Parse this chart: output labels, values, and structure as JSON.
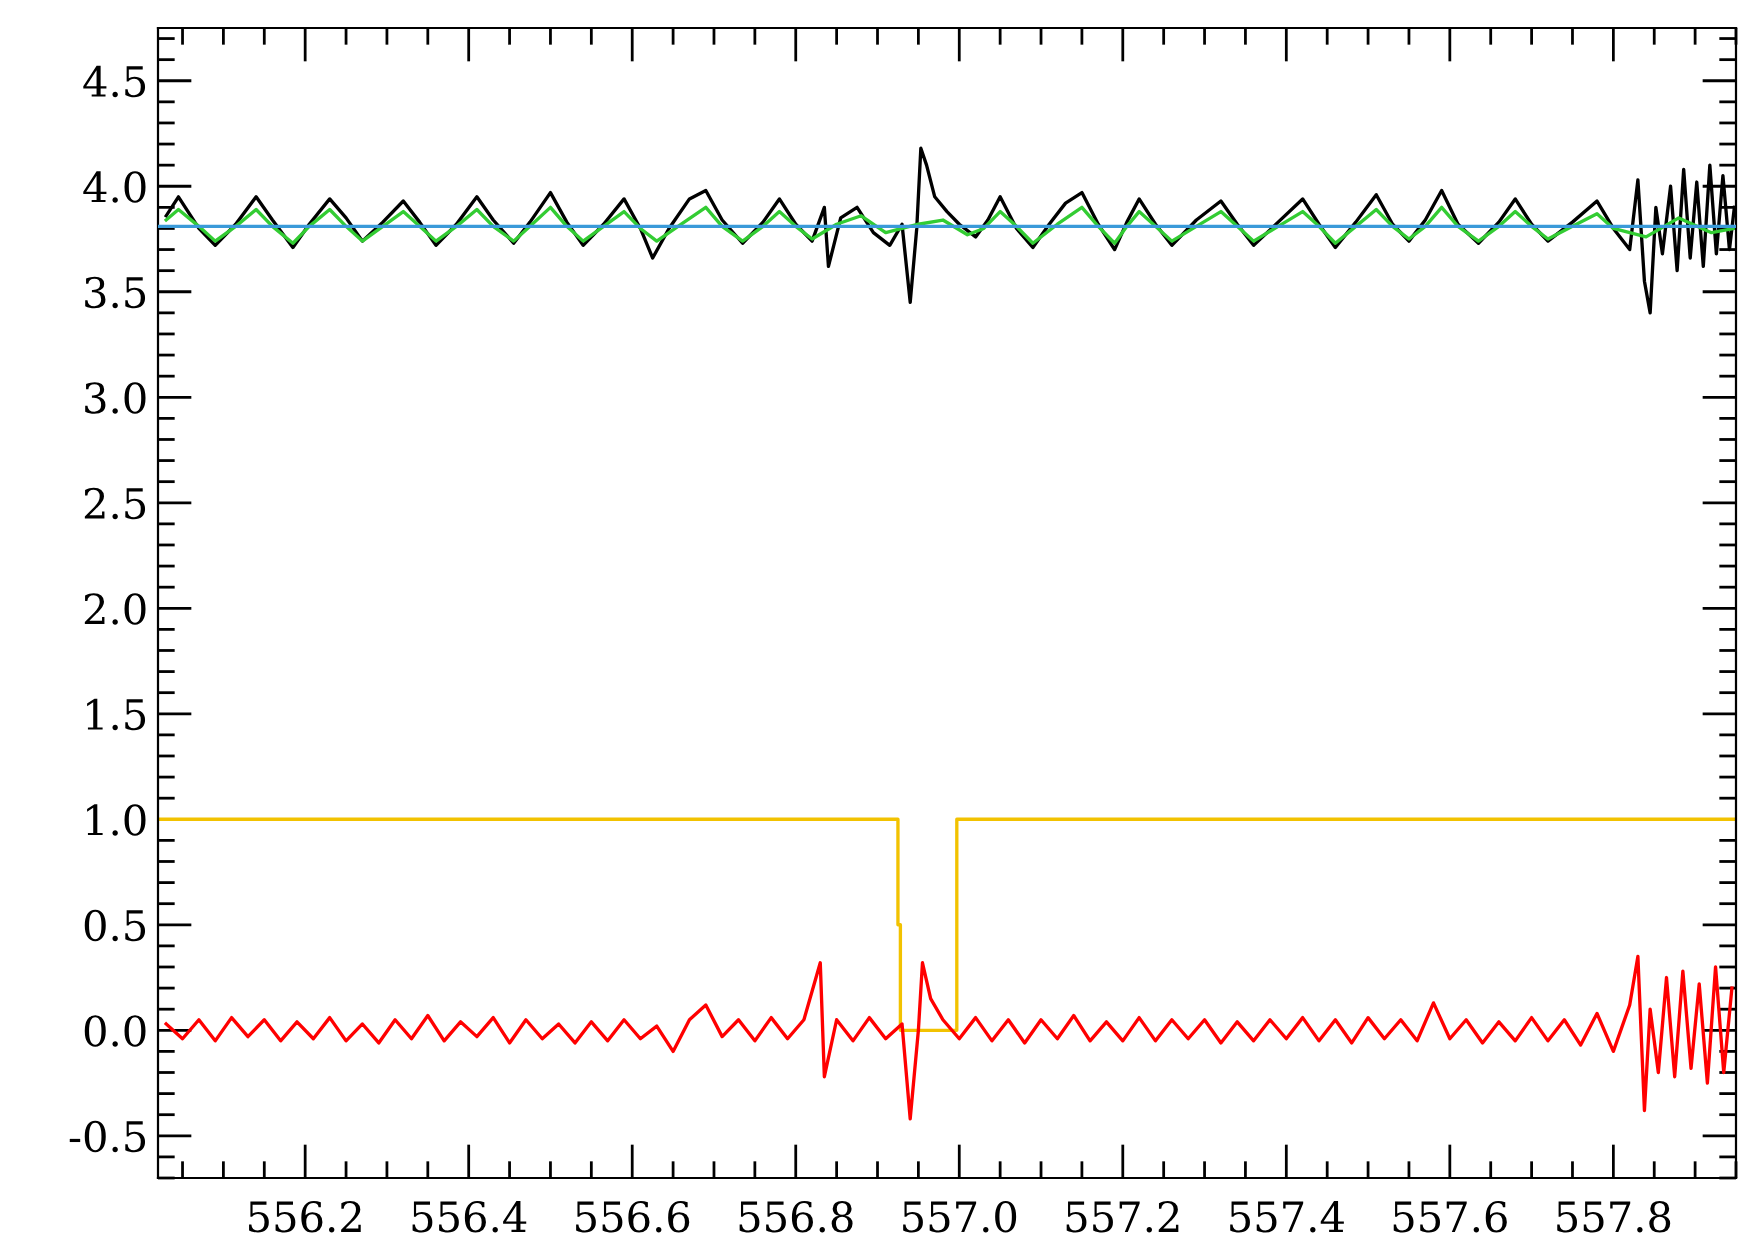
{
  "chart_data": {
    "type": "line",
    "xlim": [
      556.02,
      557.95
    ],
    "ylim": [
      -0.7,
      4.75
    ],
    "xticks": [
      556.2,
      556.4,
      556.6,
      556.8,
      {
        "value": 557,
        "label": "557.0"
      },
      557.2,
      557.4,
      557.6,
      557.8
    ],
    "yticks": [
      -0.5,
      {
        "value": 0,
        "label": "0.0"
      },
      0.5,
      {
        "value": 1,
        "label": "1.0"
      },
      1.5,
      {
        "value": 2,
        "label": "2.0"
      },
      2.5,
      {
        "value": 3,
        "label": "3.0"
      },
      3.5,
      {
        "value": 4,
        "label": "4.0"
      },
      4.5
    ],
    "grid": false,
    "marker": "none",
    "line_style": "solid",
    "series": [
      {
        "color": "#000000",
        "x": [
          556.03,
          556.045,
          556.07,
          556.09,
          556.115,
          556.14,
          556.16,
          556.185,
          556.205,
          556.23,
          556.25,
          556.27,
          556.295,
          556.32,
          556.34,
          556.36,
          556.385,
          556.41,
          556.43,
          556.455,
          556.475,
          556.5,
          556.52,
          556.54,
          556.565,
          556.59,
          556.61,
          556.625,
          556.645,
          556.67,
          556.69,
          556.71,
          556.735,
          556.76,
          556.78,
          556.8,
          556.82,
          556.835,
          556.84,
          556.855,
          556.875,
          556.895,
          556.915,
          556.93,
          556.94,
          556.948,
          556.953,
          556.96,
          556.97,
          556.985,
          557.0,
          557.02,
          557.035,
          557.05,
          557.07,
          557.09,
          557.11,
          557.13,
          557.15,
          557.17,
          557.19,
          557.205,
          557.22,
          557.24,
          557.26,
          557.29,
          557.32,
          557.34,
          557.36,
          557.39,
          557.42,
          557.44,
          557.46,
          557.485,
          557.51,
          557.53,
          557.55,
          557.57,
          557.59,
          557.61,
          557.635,
          557.66,
          557.68,
          557.7,
          557.72,
          557.75,
          557.78,
          557.8,
          557.82,
          557.83,
          557.838,
          557.845,
          557.852,
          557.86,
          557.87,
          557.878,
          557.886,
          557.894,
          557.902,
          557.91,
          557.918,
          557.926,
          557.934,
          557.942,
          557.948
        ],
        "values": [
          3.86,
          3.95,
          3.8,
          3.72,
          3.82,
          3.95,
          3.84,
          3.71,
          3.82,
          3.94,
          3.85,
          3.74,
          3.83,
          3.93,
          3.83,
          3.72,
          3.82,
          3.95,
          3.84,
          3.73,
          3.83,
          3.97,
          3.83,
          3.72,
          3.82,
          3.94,
          3.8,
          3.66,
          3.8,
          3.94,
          3.98,
          3.84,
          3.73,
          3.83,
          3.94,
          3.82,
          3.74,
          3.9,
          3.62,
          3.85,
          3.9,
          3.78,
          3.72,
          3.82,
          3.45,
          3.8,
          4.18,
          4.1,
          3.95,
          3.88,
          3.82,
          3.76,
          3.84,
          3.95,
          3.8,
          3.71,
          3.82,
          3.92,
          3.97,
          3.82,
          3.7,
          3.83,
          3.94,
          3.82,
          3.72,
          3.84,
          3.93,
          3.82,
          3.72,
          3.83,
          3.94,
          3.82,
          3.71,
          3.83,
          3.96,
          3.82,
          3.74,
          3.84,
          3.98,
          3.82,
          3.73,
          3.83,
          3.94,
          3.82,
          3.74,
          3.83,
          3.93,
          3.8,
          3.7,
          4.03,
          3.55,
          3.4,
          3.9,
          3.68,
          4.0,
          3.6,
          4.08,
          3.66,
          4.02,
          3.62,
          4.1,
          3.68,
          4.05,
          3.7,
          3.9
        ]
      },
      {
        "color": "#33cc33",
        "x": [
          556.03,
          556.045,
          556.07,
          556.09,
          556.115,
          556.14,
          556.16,
          556.185,
          556.205,
          556.23,
          556.25,
          556.27,
          556.295,
          556.32,
          556.34,
          556.36,
          556.385,
          556.41,
          556.43,
          556.455,
          556.475,
          556.5,
          556.52,
          556.54,
          556.565,
          556.59,
          556.61,
          556.63,
          556.66,
          556.69,
          556.71,
          556.735,
          556.76,
          556.78,
          556.8,
          556.82,
          556.85,
          556.88,
          556.91,
          556.95,
          556.98,
          557.01,
          557.03,
          557.05,
          557.07,
          557.09,
          557.12,
          557.15,
          557.17,
          557.19,
          557.205,
          557.22,
          557.24,
          557.26,
          557.29,
          557.32,
          557.34,
          557.36,
          557.39,
          557.42,
          557.44,
          557.46,
          557.485,
          557.51,
          557.53,
          557.55,
          557.57,
          557.59,
          557.61,
          557.635,
          557.66,
          557.68,
          557.7,
          557.72,
          557.75,
          557.78,
          557.8,
          557.84,
          557.88,
          557.92,
          557.948
        ],
        "values": [
          3.84,
          3.89,
          3.81,
          3.74,
          3.81,
          3.89,
          3.81,
          3.73,
          3.81,
          3.89,
          3.81,
          3.74,
          3.81,
          3.88,
          3.81,
          3.74,
          3.81,
          3.89,
          3.81,
          3.74,
          3.81,
          3.9,
          3.81,
          3.74,
          3.81,
          3.88,
          3.8,
          3.74,
          3.82,
          3.9,
          3.81,
          3.74,
          3.81,
          3.88,
          3.81,
          3.75,
          3.82,
          3.86,
          3.78,
          3.82,
          3.84,
          3.77,
          3.8,
          3.88,
          3.81,
          3.73,
          3.82,
          3.9,
          3.81,
          3.73,
          3.81,
          3.88,
          3.81,
          3.74,
          3.81,
          3.88,
          3.81,
          3.74,
          3.81,
          3.88,
          3.81,
          3.73,
          3.81,
          3.89,
          3.81,
          3.75,
          3.81,
          3.9,
          3.81,
          3.74,
          3.81,
          3.88,
          3.81,
          3.75,
          3.81,
          3.87,
          3.8,
          3.76,
          3.85,
          3.78,
          3.8
        ]
      },
      {
        "color": "#3a9ad9",
        "x": [
          556.02,
          557.95
        ],
        "values": [
          3.81,
          3.81
        ]
      },
      {
        "color": "#f2c200",
        "x": [
          556.02,
          556.925,
          556.925,
          556.928,
          556.928,
          556.997,
          556.997,
          557.95
        ],
        "values": [
          1.0,
          1.0,
          0.5,
          0.5,
          0.0,
          0.0,
          1.0,
          1.0
        ]
      },
      {
        "color": "#ff0000",
        "x": [
          556.03,
          556.05,
          556.07,
          556.09,
          556.11,
          556.13,
          556.15,
          556.17,
          556.19,
          556.21,
          556.23,
          556.25,
          556.27,
          556.29,
          556.31,
          556.33,
          556.35,
          556.37,
          556.39,
          556.41,
          556.43,
          556.45,
          556.47,
          556.49,
          556.51,
          556.53,
          556.55,
          556.57,
          556.59,
          556.61,
          556.63,
          556.65,
          556.67,
          556.69,
          556.71,
          556.73,
          556.75,
          556.77,
          556.79,
          556.81,
          556.83,
          556.835,
          556.85,
          556.87,
          556.89,
          556.91,
          556.93,
          556.94,
          556.95,
          556.955,
          556.965,
          556.98,
          557.0,
          557.02,
          557.04,
          557.06,
          557.08,
          557.1,
          557.12,
          557.14,
          557.16,
          557.18,
          557.2,
          557.22,
          557.24,
          557.26,
          557.28,
          557.3,
          557.32,
          557.34,
          557.36,
          557.38,
          557.4,
          557.42,
          557.44,
          557.46,
          557.48,
          557.5,
          557.52,
          557.54,
          557.56,
          557.58,
          557.6,
          557.62,
          557.64,
          557.66,
          557.68,
          557.7,
          557.72,
          557.74,
          557.76,
          557.78,
          557.8,
          557.82,
          557.83,
          557.838,
          557.845,
          557.855,
          557.865,
          557.875,
          557.885,
          557.895,
          557.905,
          557.915,
          557.925,
          557.935,
          557.945
        ],
        "values": [
          0.03,
          -0.04,
          0.05,
          -0.05,
          0.06,
          -0.03,
          0.05,
          -0.05,
          0.04,
          -0.04,
          0.06,
          -0.05,
          0.03,
          -0.06,
          0.05,
          -0.04,
          0.07,
          -0.05,
          0.04,
          -0.03,
          0.06,
          -0.06,
          0.05,
          -0.04,
          0.03,
          -0.06,
          0.04,
          -0.05,
          0.05,
          -0.04,
          0.02,
          -0.1,
          0.05,
          0.12,
          -0.03,
          0.05,
          -0.05,
          0.06,
          -0.04,
          0.05,
          0.32,
          -0.22,
          0.05,
          -0.05,
          0.06,
          -0.04,
          0.03,
          -0.42,
          0.0,
          0.32,
          0.15,
          0.05,
          -0.04,
          0.06,
          -0.05,
          0.05,
          -0.06,
          0.05,
          -0.04,
          0.07,
          -0.05,
          0.04,
          -0.05,
          0.06,
          -0.05,
          0.05,
          -0.04,
          0.05,
          -0.06,
          0.04,
          -0.05,
          0.05,
          -0.04,
          0.06,
          -0.05,
          0.05,
          -0.06,
          0.06,
          -0.04,
          0.05,
          -0.05,
          0.13,
          -0.04,
          0.05,
          -0.06,
          0.04,
          -0.05,
          0.06,
          -0.05,
          0.05,
          -0.07,
          0.08,
          -0.1,
          0.12,
          0.35,
          -0.38,
          0.1,
          -0.2,
          0.25,
          -0.22,
          0.28,
          -0.18,
          0.22,
          -0.25,
          0.3,
          -0.2,
          0.2
        ]
      }
    ]
  }
}
